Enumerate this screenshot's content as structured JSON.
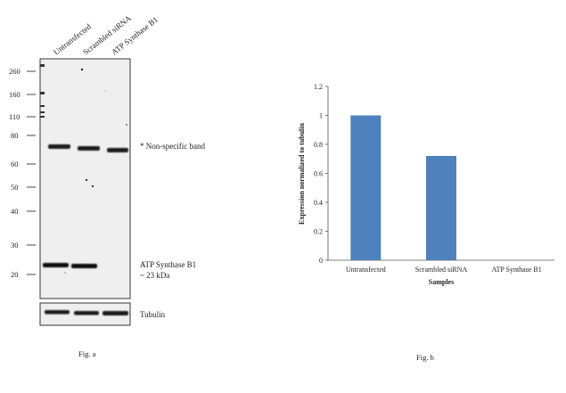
{
  "figure_a": {
    "caption": "Fig. a",
    "lane_labels": [
      "Untransfected",
      "Scrambled siRNA",
      "ATP Synthase B1"
    ],
    "markers": [
      "260",
      "160",
      "110",
      "80",
      "60",
      "50",
      "40",
      "30",
      "20"
    ],
    "annotations": {
      "nonspecific": "* Non-specific band",
      "target_name": "ATP Synthase B1",
      "target_size": "~ 23 kDa",
      "loading_control": "Tubulin"
    }
  },
  "figure_b": {
    "caption": "Fig. b"
  },
  "chart_data": {
    "type": "bar",
    "categories": [
      "Untransfected",
      "Scrambled siRNA",
      "ATP Synthase B1"
    ],
    "values": [
      1.0,
      0.72,
      0.0
    ],
    "xlabel": "Samples",
    "ylabel": "Expression normalized to tubulin",
    "ylim": [
      0,
      1.2
    ],
    "yticks": [
      "0",
      "0.2",
      "0.4",
      "0.6",
      "0.8",
      "1",
      "1.2"
    ],
    "bar_color": "#4f81bd",
    "grid": false,
    "legend": "none"
  }
}
